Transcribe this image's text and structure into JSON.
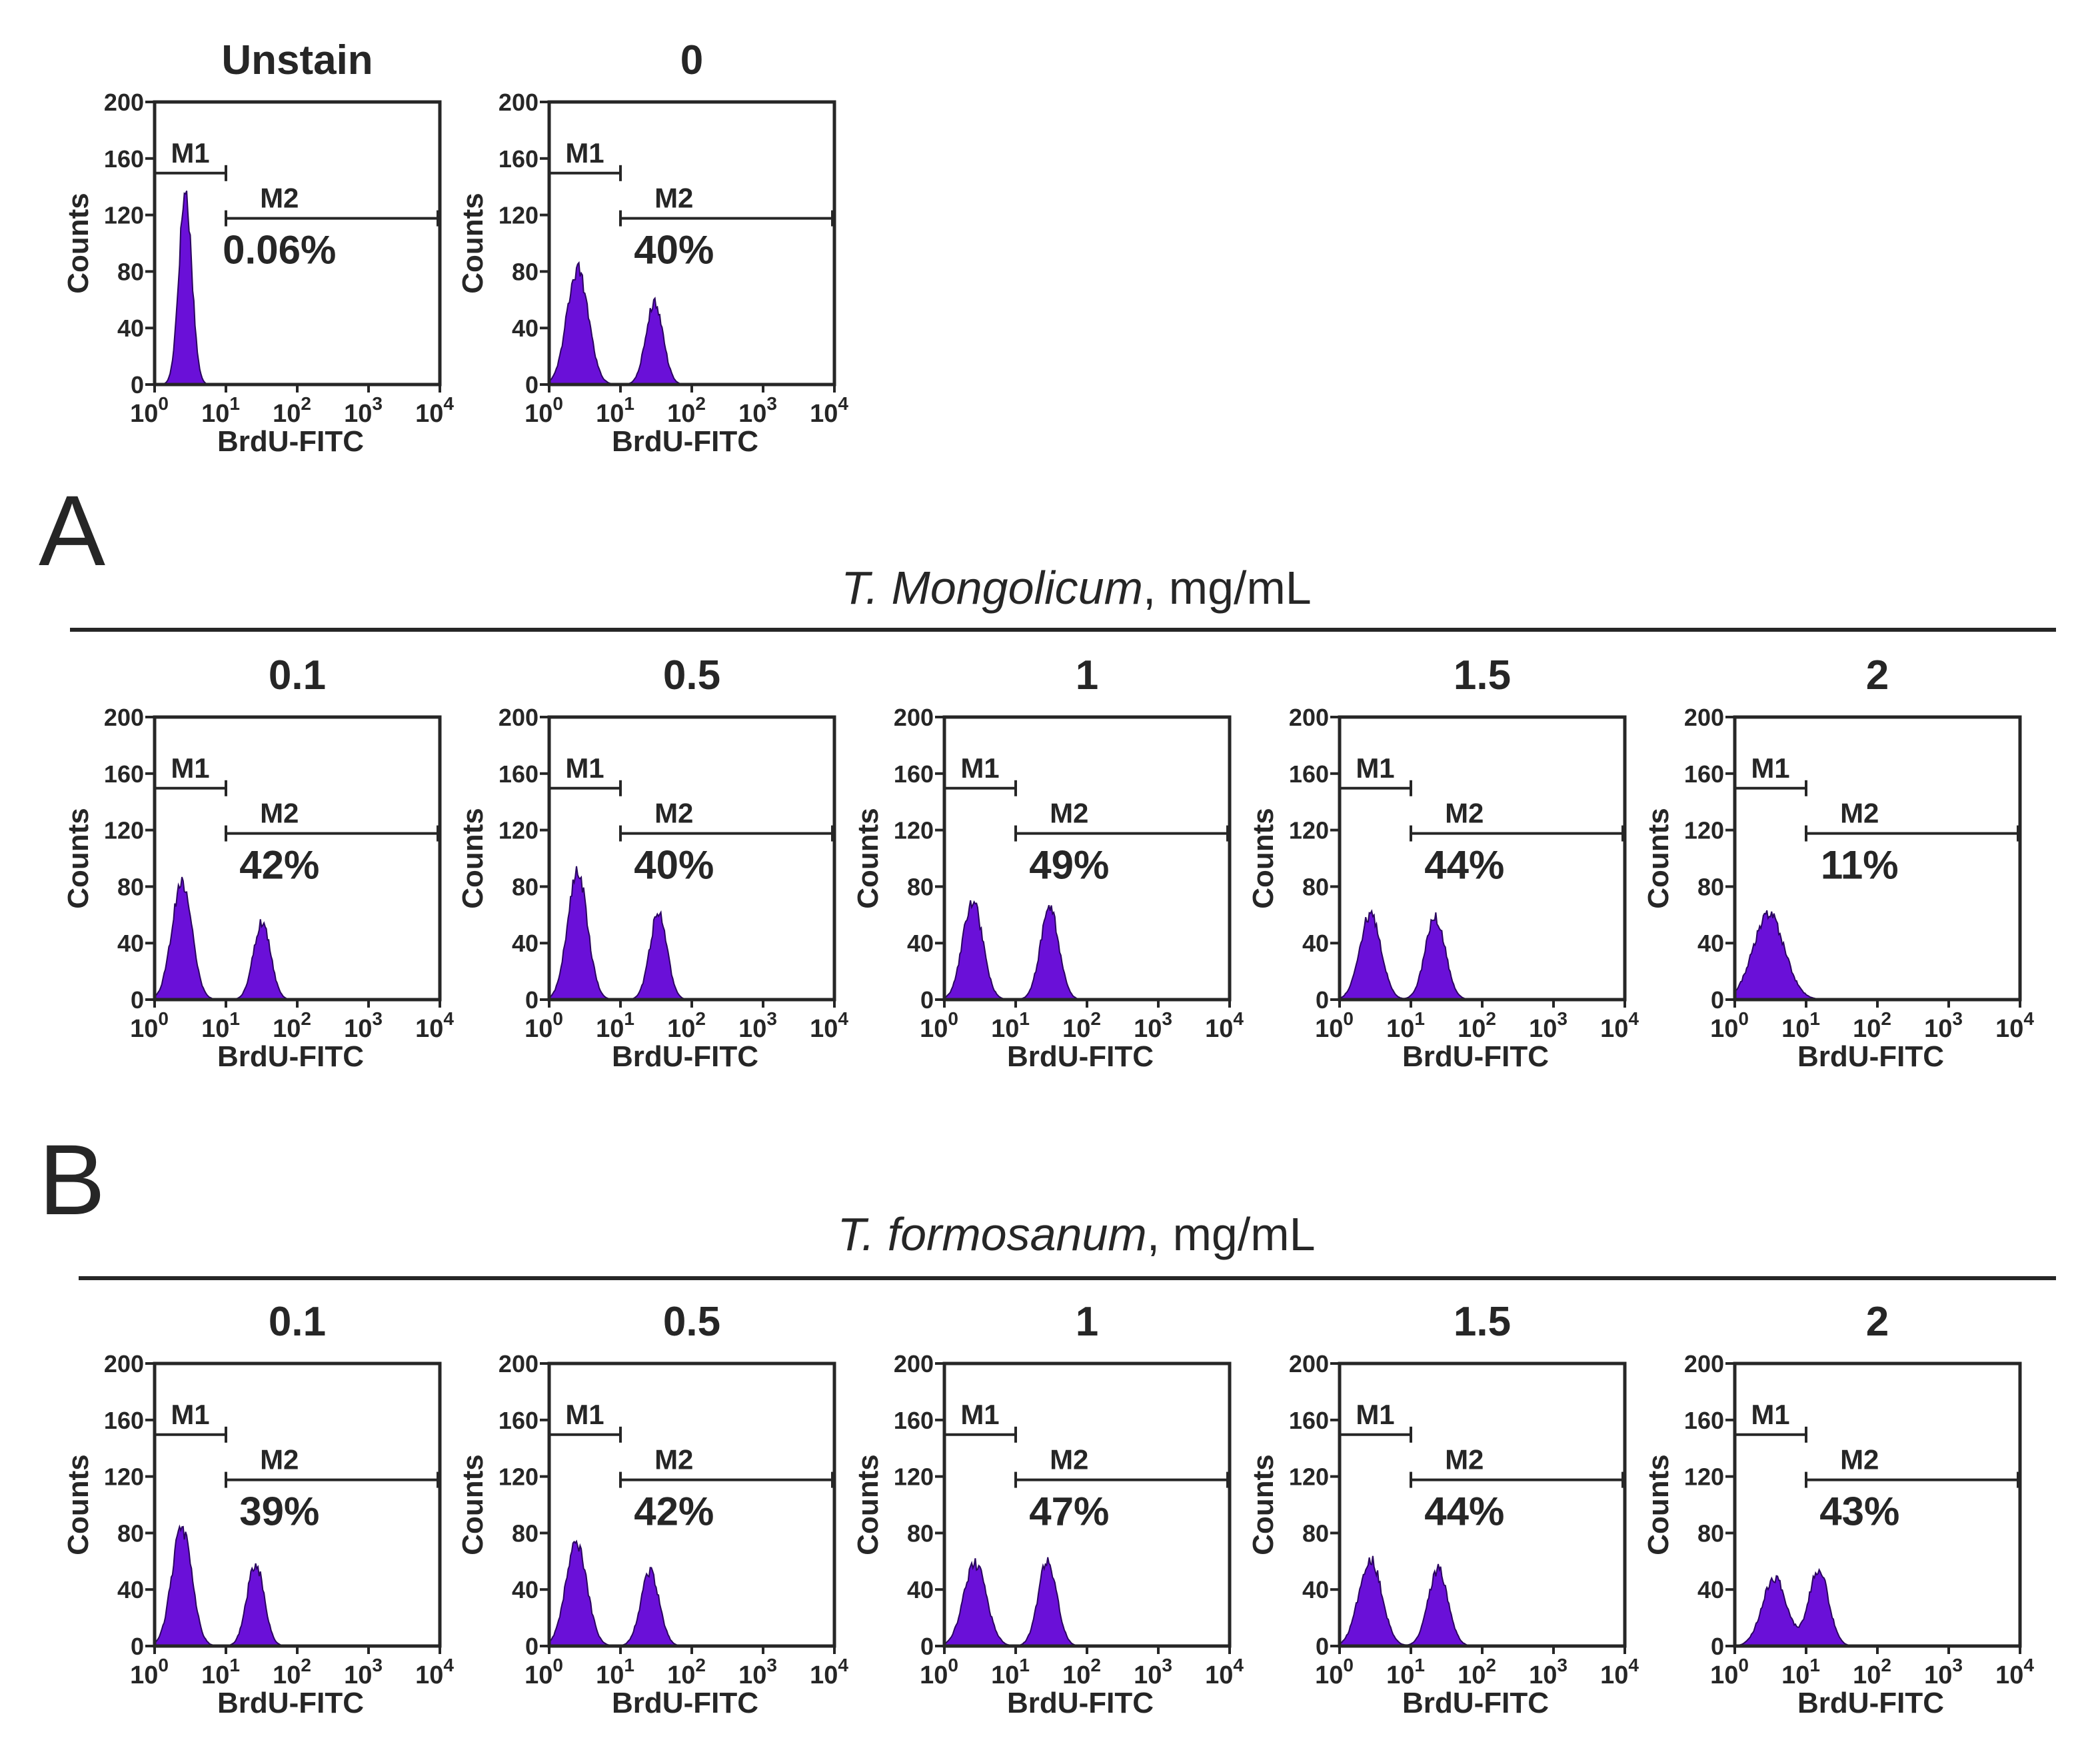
{
  "figure": {
    "panel_labels": [
      "A",
      "B"
    ],
    "group_headers": [
      {
        "species": "T. Mongolicum",
        "unit": ", mg/mL"
      },
      {
        "species": "T. formosanum",
        "unit": ", mg/mL"
      }
    ]
  },
  "style": {
    "fill_color": "#6a10d8",
    "stroke_color": "#2a0560",
    "axis_color": "#262626"
  },
  "chart_data": [
    {
      "type": "histogram",
      "title": "Unstain",
      "xlabel": "BrdU-FITC",
      "ylabel": "Counts",
      "xscale": "log",
      "xlim": [
        1,
        10000
      ],
      "ylim": [
        0,
        200
      ],
      "yticks": [
        0,
        40,
        80,
        120,
        160,
        200
      ],
      "xticks": [
        "10^0",
        "10^1",
        "10^2",
        "10^3",
        "10^4"
      ],
      "markers": [
        {
          "name": "M1",
          "range": [
            1,
            10
          ]
        },
        {
          "name": "M2",
          "range": [
            10,
            10000
          ],
          "percent": "0.06%"
        }
      ],
      "peaks": [
        {
          "x": 2.7,
          "height": 140,
          "width": 0.09
        }
      ]
    },
    {
      "type": "histogram",
      "title": "0",
      "xlabel": "BrdU-FITC",
      "ylabel": "Counts",
      "xscale": "log",
      "xlim": [
        1,
        10000
      ],
      "ylim": [
        0,
        200
      ],
      "yticks": [
        0,
        40,
        80,
        120,
        160,
        200
      ],
      "xticks": [
        "10^0",
        "10^1",
        "10^2",
        "10^3",
        "10^4"
      ],
      "markers": [
        {
          "name": "M1",
          "range": [
            1,
            10
          ]
        },
        {
          "name": "M2",
          "range": [
            10,
            10000
          ],
          "percent": "40%"
        }
      ],
      "peaks": [
        {
          "x": 2.5,
          "height": 84,
          "width": 0.15
        },
        {
          "x": 30,
          "height": 60,
          "width": 0.12
        }
      ]
    },
    {
      "type": "histogram",
      "title": "0.1",
      "group": 0,
      "xlabel": "BrdU-FITC",
      "ylabel": "Counts",
      "xscale": "log",
      "xlim": [
        1,
        10000
      ],
      "ylim": [
        0,
        200
      ],
      "yticks": [
        0,
        40,
        80,
        120,
        160,
        200
      ],
      "xticks": [
        "10^0",
        "10^1",
        "10^2",
        "10^3",
        "10^4"
      ],
      "markers": [
        {
          "name": "M1",
          "range": [
            1,
            10
          ]
        },
        {
          "name": "M2",
          "range": [
            10,
            10000
          ],
          "percent": "42%"
        }
      ],
      "peaks": [
        {
          "x": 2.4,
          "height": 86,
          "width": 0.14
        },
        {
          "x": 32,
          "height": 56,
          "width": 0.12
        }
      ]
    },
    {
      "type": "histogram",
      "title": "0.5",
      "group": 0,
      "xlabel": "BrdU-FITC",
      "ylabel": "Counts",
      "xscale": "log",
      "xlim": [
        1,
        10000
      ],
      "ylim": [
        0,
        200
      ],
      "yticks": [
        0,
        40,
        80,
        120,
        160,
        200
      ],
      "xticks": [
        "10^0",
        "10^1",
        "10^2",
        "10^3",
        "10^4"
      ],
      "markers": [
        {
          "name": "M1",
          "range": [
            1,
            10
          ]
        },
        {
          "name": "M2",
          "range": [
            10,
            10000
          ],
          "percent": "40%"
        }
      ],
      "peaks": [
        {
          "x": 2.5,
          "height": 92,
          "width": 0.14
        },
        {
          "x": 34,
          "height": 63,
          "width": 0.12
        }
      ]
    },
    {
      "type": "histogram",
      "title": "1",
      "group": 0,
      "xlabel": "BrdU-FITC",
      "ylabel": "Counts",
      "xscale": "log",
      "xlim": [
        1,
        10000
      ],
      "ylim": [
        0,
        200
      ],
      "yticks": [
        0,
        40,
        80,
        120,
        160,
        200
      ],
      "xticks": [
        "10^0",
        "10^1",
        "10^2",
        "10^3",
        "10^4"
      ],
      "markers": [
        {
          "name": "M1",
          "range": [
            1,
            10
          ]
        },
        {
          "name": "M2",
          "range": [
            10,
            10000
          ],
          "percent": "49%"
        }
      ],
      "peaks": [
        {
          "x": 2.5,
          "height": 72,
          "width": 0.14
        },
        {
          "x": 30,
          "height": 66,
          "width": 0.13
        }
      ]
    },
    {
      "type": "histogram",
      "title": "1.5",
      "group": 0,
      "xlabel": "BrdU-FITC",
      "ylabel": "Counts",
      "xscale": "log",
      "xlim": [
        1,
        10000
      ],
      "ylim": [
        0,
        200
      ],
      "yticks": [
        0,
        40,
        80,
        120,
        160,
        200
      ],
      "xticks": [
        "10^0",
        "10^1",
        "10^2",
        "10^3",
        "10^4"
      ],
      "markers": [
        {
          "name": "M1",
          "range": [
            1,
            10
          ]
        },
        {
          "name": "M2",
          "range": [
            10,
            10000
          ],
          "percent": "44%"
        }
      ],
      "peaks": [
        {
          "x": 2.7,
          "height": 62,
          "width": 0.15
        },
        {
          "x": 22,
          "height": 60,
          "width": 0.14
        }
      ]
    },
    {
      "type": "histogram",
      "title": "2",
      "group": 0,
      "xlabel": "BrdU-FITC",
      "ylabel": "Counts",
      "xscale": "log",
      "xlim": [
        1,
        10000
      ],
      "ylim": [
        0,
        200
      ],
      "yticks": [
        0,
        40,
        80,
        120,
        160,
        200
      ],
      "xticks": [
        "10^0",
        "10^1",
        "10^2",
        "10^3",
        "10^4"
      ],
      "markers": [
        {
          "name": "M1",
          "range": [
            1,
            10
          ]
        },
        {
          "name": "M2",
          "range": [
            10,
            10000
          ],
          "percent": "11%"
        }
      ],
      "peaks": [
        {
          "x": 3,
          "height": 62,
          "width": 0.22
        }
      ]
    },
    {
      "type": "histogram",
      "title": "0.1",
      "group": 1,
      "xlabel": "BrdU-FITC",
      "ylabel": "Counts",
      "xscale": "log",
      "xlim": [
        1,
        10000
      ],
      "ylim": [
        0,
        200
      ],
      "yticks": [
        0,
        40,
        80,
        120,
        160,
        200
      ],
      "xticks": [
        "10^0",
        "10^1",
        "10^2",
        "10^3",
        "10^4"
      ],
      "markers": [
        {
          "name": "M1",
          "range": [
            1,
            10
          ]
        },
        {
          "name": "M2",
          "range": [
            10,
            10000
          ],
          "percent": "39%"
        }
      ],
      "peaks": [
        {
          "x": 2.4,
          "height": 86,
          "width": 0.14
        },
        {
          "x": 26,
          "height": 60,
          "width": 0.12
        }
      ]
    },
    {
      "type": "histogram",
      "title": "0.5",
      "group": 1,
      "xlabel": "BrdU-FITC",
      "ylabel": "Counts",
      "xscale": "log",
      "xlim": [
        1,
        10000
      ],
      "ylim": [
        0,
        200
      ],
      "yticks": [
        0,
        40,
        80,
        120,
        160,
        200
      ],
      "xticks": [
        "10^0",
        "10^1",
        "10^2",
        "10^3",
        "10^4"
      ],
      "markers": [
        {
          "name": "M1",
          "range": [
            1,
            10
          ]
        },
        {
          "name": "M2",
          "range": [
            10,
            10000
          ],
          "percent": "42%"
        }
      ],
      "peaks": [
        {
          "x": 2.4,
          "height": 74,
          "width": 0.15
        },
        {
          "x": 26,
          "height": 54,
          "width": 0.13
        }
      ]
    },
    {
      "type": "histogram",
      "title": "1",
      "group": 1,
      "xlabel": "BrdU-FITC",
      "ylabel": "Counts",
      "xscale": "log",
      "xlim": [
        1,
        10000
      ],
      "ylim": [
        0,
        200
      ],
      "yticks": [
        0,
        40,
        80,
        120,
        160,
        200
      ],
      "xticks": [
        "10^0",
        "10^1",
        "10^2",
        "10^3",
        "10^4"
      ],
      "markers": [
        {
          "name": "M1",
          "range": [
            1,
            10
          ]
        },
        {
          "name": "M2",
          "range": [
            10,
            10000
          ],
          "percent": "47%"
        }
      ],
      "peaks": [
        {
          "x": 2.7,
          "height": 60,
          "width": 0.16
        },
        {
          "x": 28,
          "height": 62,
          "width": 0.13
        }
      ]
    },
    {
      "type": "histogram",
      "title": "1.5",
      "group": 1,
      "xlabel": "BrdU-FITC",
      "ylabel": "Counts",
      "xscale": "log",
      "xlim": [
        1,
        10000
      ],
      "ylim": [
        0,
        200
      ],
      "yticks": [
        0,
        40,
        80,
        120,
        160,
        200
      ],
      "xticks": [
        "10^0",
        "10^1",
        "10^2",
        "10^3",
        "10^4"
      ],
      "markers": [
        {
          "name": "M1",
          "range": [
            1,
            10
          ]
        },
        {
          "name": "M2",
          "range": [
            10,
            10000
          ],
          "percent": "44%"
        }
      ],
      "peaks": [
        {
          "x": 2.7,
          "height": 64,
          "width": 0.16
        },
        {
          "x": 24,
          "height": 56,
          "width": 0.14
        }
      ]
    },
    {
      "type": "histogram",
      "title": "2",
      "group": 1,
      "xlabel": "BrdU-FITC",
      "ylabel": "Counts",
      "xscale": "log",
      "xlim": [
        1,
        10000
      ],
      "ylim": [
        0,
        200
      ],
      "yticks": [
        0,
        40,
        80,
        120,
        160,
        200
      ],
      "xticks": [
        "10^0",
        "10^1",
        "10^2",
        "10^3",
        "10^4"
      ],
      "markers": [
        {
          "name": "M1",
          "range": [
            1,
            10
          ]
        },
        {
          "name": "M2",
          "range": [
            10,
            10000
          ],
          "percent": "43%"
        }
      ],
      "peaks": [
        {
          "x": 3.6,
          "height": 50,
          "width": 0.17
        },
        {
          "x": 15,
          "height": 56,
          "width": 0.14
        }
      ]
    }
  ]
}
